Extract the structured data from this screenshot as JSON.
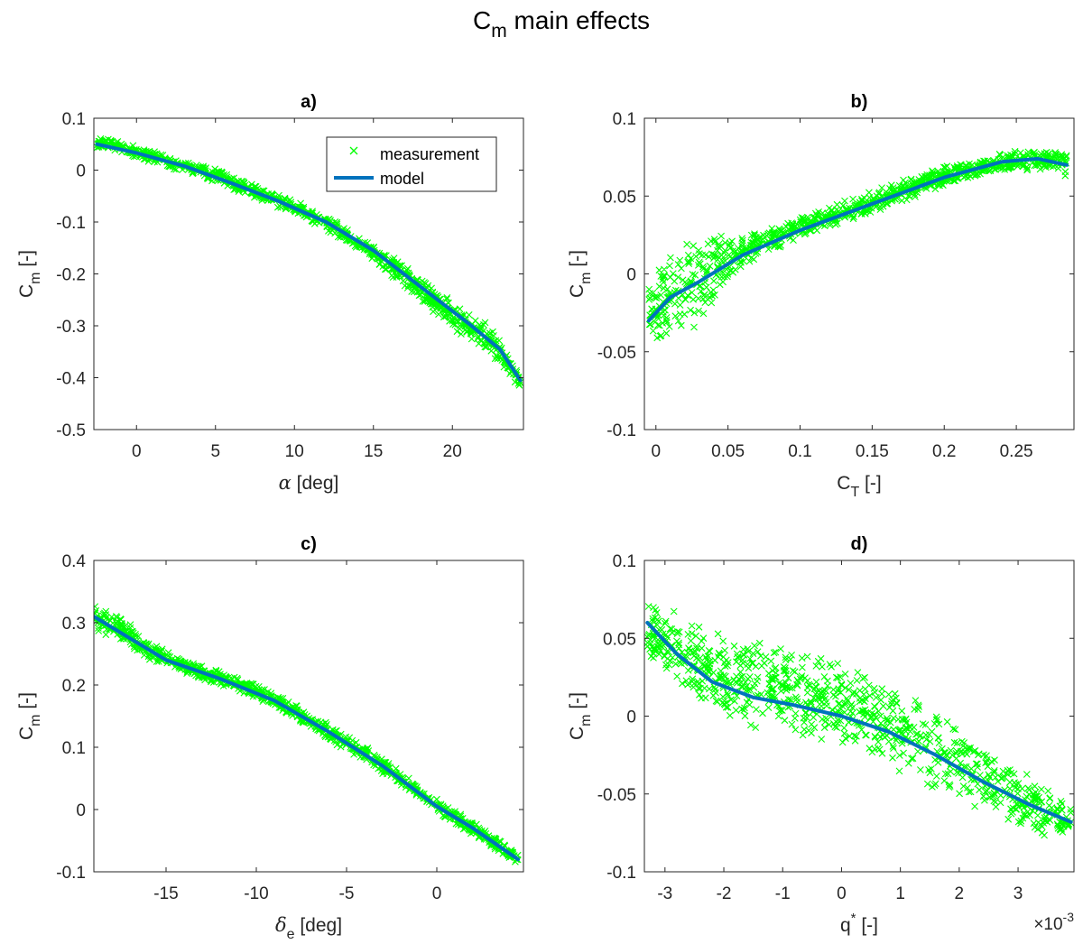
{
  "figure": {
    "title": "C",
    "title_sub": "m",
    "title_rest": " main effects"
  },
  "legend": {
    "measurement": "measurement",
    "model": "model",
    "location": "top-right of panel a"
  },
  "colors": {
    "measurement": "#00ff00",
    "model": "#0072bd",
    "axes": "#262626"
  },
  "chart_data": [
    {
      "type": "scatter",
      "panel": "a)",
      "xlabel": {
        "pre": "",
        "greek": "α",
        "sub": "",
        "sup": "",
        "post": " [deg]"
      },
      "ylabel": {
        "main": "C",
        "sub": "m",
        "post": " [-]"
      },
      "xlim": [
        -2.7,
        24.5
      ],
      "ylim": [
        -0.5,
        0.1
      ],
      "xticks": [
        0,
        5,
        10,
        15,
        20
      ],
      "xtick_labels": [
        "0",
        "5",
        "10",
        "15",
        "20"
      ],
      "yticks": [
        -0.5,
        -0.4,
        -0.3,
        -0.2,
        -0.1,
        0,
        0.1
      ],
      "ytick_labels": [
        "-0.5",
        "-0.4",
        "-0.3",
        "-0.2",
        "-0.1",
        "0",
        "0.1"
      ],
      "series": [
        {
          "name": "model",
          "x": [
            -2.5,
            0,
            3,
            6,
            9,
            12,
            15,
            18,
            21,
            23,
            24.3
          ],
          "y": [
            0.05,
            0.033,
            0.008,
            -0.025,
            -0.06,
            -0.1,
            -0.155,
            -0.225,
            -0.295,
            -0.345,
            -0.405
          ]
        },
        {
          "name": "measurement",
          "x": [
            -2.5,
            -1,
            1,
            3,
            5,
            7,
            9,
            11,
            13,
            15,
            17,
            19,
            21,
            22.5,
            24.3
          ],
          "y": [
            0.055,
            0.045,
            0.025,
            0.008,
            -0.01,
            -0.035,
            -0.06,
            -0.085,
            -0.12,
            -0.16,
            -0.205,
            -0.255,
            -0.3,
            -0.33,
            -0.41
          ],
          "spread": [
            0.012,
            0.012,
            0.012,
            0.012,
            0.014,
            0.015,
            0.014,
            0.014,
            0.016,
            0.02,
            0.022,
            0.025,
            0.03,
            0.03,
            0.015
          ]
        }
      ]
    },
    {
      "type": "scatter",
      "panel": "b)",
      "xlabel": {
        "pre": "",
        "greek": "",
        "main": "C",
        "sub": "T",
        "sup": "",
        "post": " [-]"
      },
      "ylabel": {
        "main": "C",
        "sub": "m",
        "post": " [-]"
      },
      "xlim": [
        -0.008,
        0.29
      ],
      "ylim": [
        -0.1,
        0.1
      ],
      "xticks": [
        0,
        0.05,
        0.1,
        0.15,
        0.2,
        0.25
      ],
      "xtick_labels": [
        "0",
        "0.05",
        "0.1",
        "0.15",
        "0.2",
        "0.25"
      ],
      "yticks": [
        -0.1,
        -0.05,
        0,
        0.05,
        0.1
      ],
      "ytick_labels": [
        "-0.1",
        "-0.05",
        "0",
        "0.05",
        "0.1"
      ],
      "series": [
        {
          "name": "model",
          "x": [
            -0.005,
            0.01,
            0.03,
            0.06,
            0.1,
            0.15,
            0.2,
            0.24,
            0.265,
            0.285
          ],
          "y": [
            -0.03,
            -0.015,
            -0.005,
            0.012,
            0.028,
            0.045,
            0.062,
            0.072,
            0.074,
            0.07
          ]
        },
        {
          "name": "measurement",
          "x": [
            -0.005,
            0.01,
            0.03,
            0.06,
            0.1,
            0.15,
            0.2,
            0.24,
            0.265,
            0.285
          ],
          "y": [
            -0.025,
            -0.012,
            -0.003,
            0.014,
            0.03,
            0.046,
            0.063,
            0.072,
            0.074,
            0.07
          ],
          "spread": [
            0.025,
            0.03,
            0.035,
            0.01,
            0.008,
            0.008,
            0.007,
            0.006,
            0.008,
            0.008
          ]
        }
      ]
    },
    {
      "type": "scatter",
      "panel": "c)",
      "xlabel": {
        "pre": "",
        "greek": "δ",
        "sub": "e",
        "sup": "",
        "post": " [deg]"
      },
      "ylabel": {
        "main": "C",
        "sub": "m",
        "post": " [-]"
      },
      "xlim": [
        -19,
        4.8
      ],
      "ylim": [
        -0.1,
        0.4
      ],
      "xticks": [
        -15,
        -10,
        -5,
        0
      ],
      "xtick_labels": [
        "-15",
        "-10",
        "-5",
        "0"
      ],
      "yticks": [
        -0.1,
        0,
        0.1,
        0.2,
        0.3,
        0.4
      ],
      "ytick_labels": [
        "-0.1",
        "0",
        "0.1",
        "0.2",
        "0.3",
        "0.4"
      ],
      "series": [
        {
          "name": "model",
          "x": [
            -19,
            -17,
            -15,
            -12,
            -9,
            -6,
            -3,
            0,
            2,
            4.5
          ],
          "y": [
            0.31,
            0.275,
            0.24,
            0.21,
            0.175,
            0.125,
            0.07,
            0.005,
            -0.03,
            -0.08
          ]
        },
        {
          "name": "measurement",
          "x": [
            -19,
            -17.5,
            -16,
            -14,
            -12,
            -10,
            -8,
            -6,
            -4,
            -2,
            0,
            2,
            4.5
          ],
          "y": [
            0.31,
            0.29,
            0.255,
            0.23,
            0.21,
            0.19,
            0.16,
            0.125,
            0.09,
            0.05,
            0.005,
            -0.03,
            -0.08
          ],
          "spread": [
            0.03,
            0.025,
            0.015,
            0.012,
            0.012,
            0.012,
            0.013,
            0.013,
            0.013,
            0.012,
            0.012,
            0.012,
            0.01
          ]
        }
      ]
    },
    {
      "type": "scatter",
      "panel": "d)",
      "xlabel": {
        "pre": "",
        "greek": "",
        "main": "q",
        "sub": "",
        "sup": "*",
        "post": " [-]"
      },
      "ylabel": {
        "main": "C",
        "sub": "m",
        "post": " [-]"
      },
      "x_multiplier": {
        "base": "×10",
        "exp": "-3"
      },
      "xlim": [
        -3.35,
        3.95
      ],
      "ylim": [
        -0.1,
        0.1
      ],
      "xticks": [
        -3,
        -2,
        -1,
        0,
        1,
        2,
        3
      ],
      "xtick_labels": [
        "-3",
        "-2",
        "-1",
        "0",
        "1",
        "2",
        "3"
      ],
      "yticks": [
        -0.1,
        -0.05,
        0,
        0.05,
        0.1
      ],
      "ytick_labels": [
        "-0.1",
        "-0.05",
        "0",
        "0.05",
        "0.1"
      ],
      "series": [
        {
          "name": "model",
          "x": [
            -3.3,
            -2.8,
            -2.2,
            -1.5,
            -0.8,
            0,
            0.8,
            1.6,
            2.4,
            3.2,
            3.9
          ],
          "y": [
            0.06,
            0.04,
            0.022,
            0.012,
            0.007,
            0.0,
            -0.01,
            -0.025,
            -0.042,
            -0.057,
            -0.068
          ]
        },
        {
          "name": "measurement",
          "x": [
            -3.3,
            -2.8,
            -2.2,
            -1.5,
            -0.8,
            0,
            0.8,
            1.6,
            2.4,
            3.2,
            3.9
          ],
          "y": [
            0.055,
            0.042,
            0.028,
            0.02,
            0.015,
            0.008,
            -0.005,
            -0.022,
            -0.04,
            -0.055,
            -0.07
          ],
          "spread": [
            0.02,
            0.025,
            0.03,
            0.03,
            0.03,
            0.03,
            0.03,
            0.03,
            0.025,
            0.02,
            0.012
          ]
        }
      ]
    }
  ]
}
